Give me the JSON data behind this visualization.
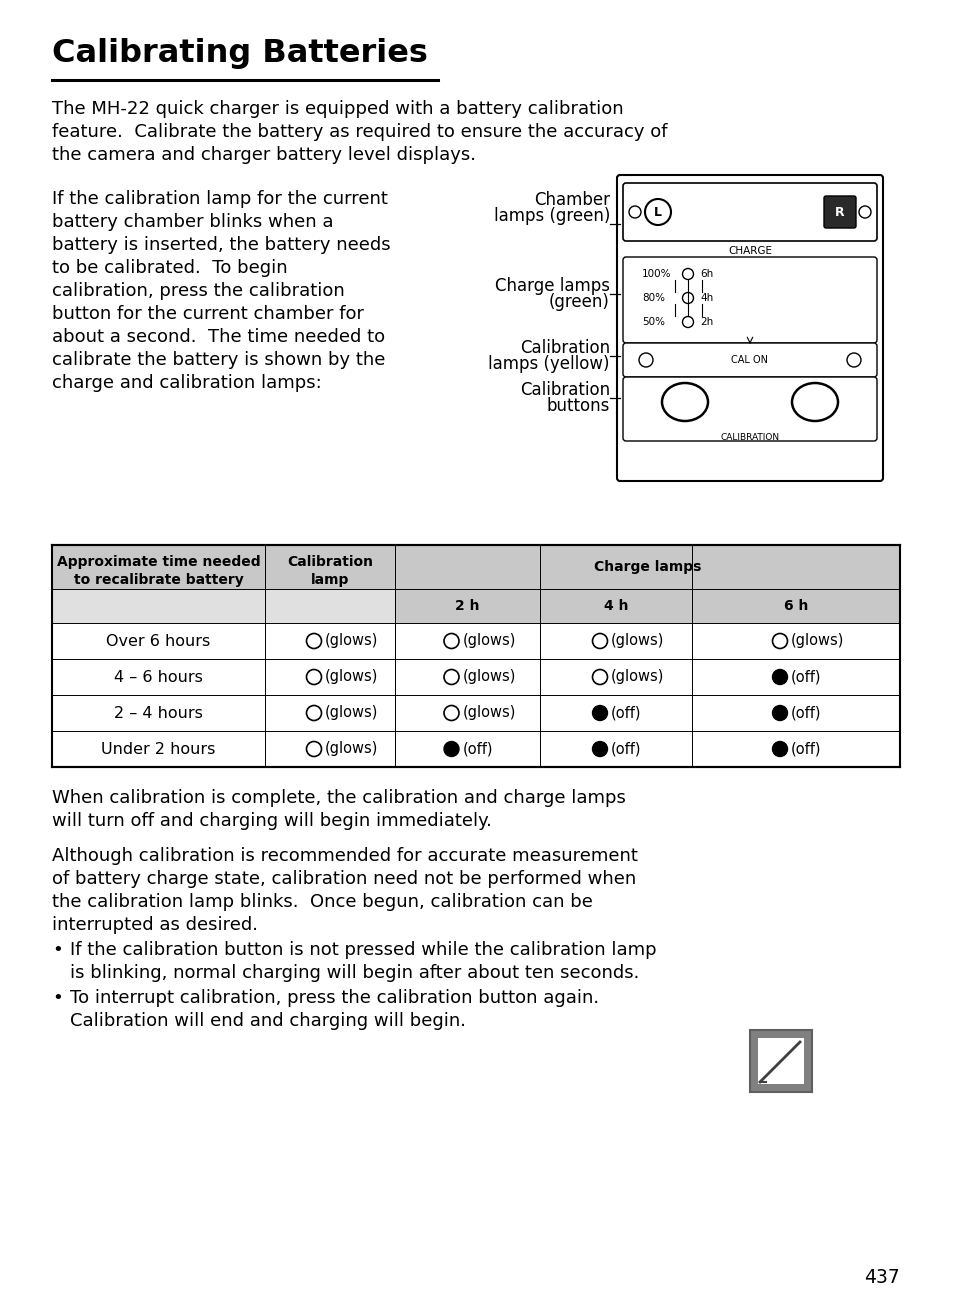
{
  "title": "Calibrating Batteries",
  "bg_color": "#ffffff",
  "text_color": "#000000",
  "para1_lines": [
    "The MH-22 quick charger is equipped with a battery calibration",
    "feature.  Calibrate the battery as required to ensure the accuracy of",
    "the camera and charger battery level displays."
  ],
  "para2_lines": [
    "If the calibration lamp for the current",
    "battery chamber blinks when a",
    "battery is inserted, the battery needs",
    "to be calibrated.  To begin",
    "calibration, press the calibration",
    "button for the current chamber for",
    "about a second.  The time needed to",
    "calibrate the battery is shown by the",
    "charge and calibration lamps:"
  ],
  "para3_lines": [
    "When calibration is complete, the calibration and charge lamps",
    "will turn off and charging will begin immediately."
  ],
  "para4_lines": [
    "Although calibration is recommended for accurate measurement",
    "of battery charge state, calibration need not be performed when",
    "the calibration lamp blinks.  Once begun, calibration can be",
    "interrupted as desired."
  ],
  "bullet1_line1": "If the calibration button is not pressed while the calibration lamp",
  "bullet1_line2": "is blinking, normal charging will begin after about ten seconds.",
  "bullet2_line1": "To interrupt calibration, press the calibration button again.",
  "bullet2_line2": "Calibration will end and charging will begin.",
  "table_row_labels": [
    "Over 6 hours",
    "4 – 6 hours",
    "2 – 4 hours",
    "Under 2 hours"
  ],
  "table_row_data": [
    [
      "O",
      "O",
      "O",
      "O"
    ],
    [
      "O",
      "O",
      "O",
      "F"
    ],
    [
      "O",
      "O",
      "F",
      "F"
    ],
    [
      "O",
      "F",
      "F",
      "F"
    ]
  ],
  "page_number": "437",
  "charge_items": [
    [
      "100%",
      "6h"
    ],
    [
      "80%",
      "4h"
    ],
    [
      "50%",
      "2h"
    ]
  ]
}
